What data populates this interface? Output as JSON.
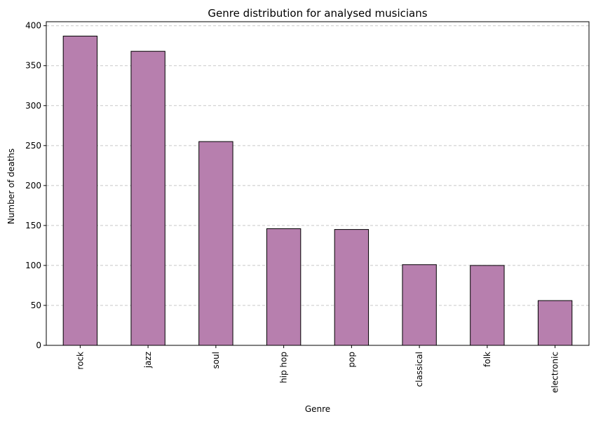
{
  "chart_data": {
    "type": "bar",
    "title": "Genre distribution for analysed musicians",
    "xlabel": "Genre",
    "ylabel": "Number of deaths",
    "categories": [
      "rock",
      "jazz",
      "soul",
      "hip hop",
      "pop",
      "classical",
      "folk",
      "electronic"
    ],
    "values": [
      387,
      368,
      255,
      146,
      145,
      101,
      100,
      56
    ],
    "ylim": [
      0,
      405
    ],
    "yticks": [
      0,
      50,
      100,
      150,
      200,
      250,
      300,
      350,
      400
    ],
    "grid": "y-dashed",
    "colors": {
      "bar": "#b77fae",
      "bar_edge": "#000000",
      "grid": "#c8c8c8"
    }
  }
}
